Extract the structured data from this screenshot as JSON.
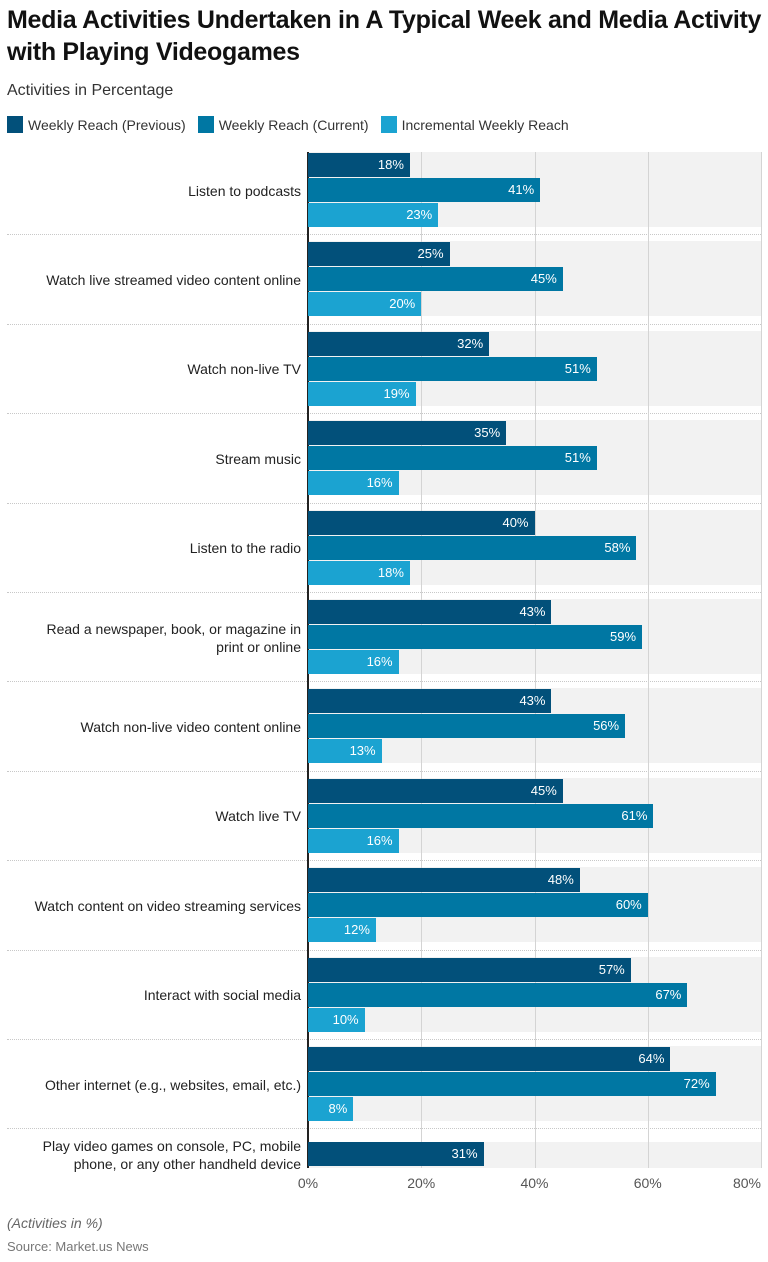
{
  "chart_data": {
    "type": "bar",
    "orientation": "horizontal",
    "title": "Media Activities Undertaken in A Typical Week and Media Activity with Playing Videogames",
    "subtitle": "Activities in Percentage",
    "xlim": [
      0,
      80
    ],
    "x_ticks": [
      "0%",
      "20%",
      "40%",
      "60%",
      "80%"
    ],
    "x_tick_values": [
      0,
      20,
      40,
      60,
      80
    ],
    "grid": true,
    "legend_position": "top-left",
    "categories": [
      [
        "Listen to podcasts"
      ],
      [
        "Watch live streamed video content online"
      ],
      [
        "Watch non-live TV"
      ],
      [
        "Stream music"
      ],
      [
        "Listen to the radio"
      ],
      [
        "Read a newspaper, book, or magazine in",
        "print or online"
      ],
      [
        "Watch non-live video content online"
      ],
      [
        "Watch live TV"
      ],
      [
        "Watch content on video streaming services"
      ],
      [
        "Interact with social media"
      ],
      [
        "Other internet (e.g., websites, email, etc.)"
      ],
      [
        "Play video games on console, PC, mobile",
        "phone, or any other handheld device"
      ]
    ],
    "series": [
      {
        "name": "Weekly Reach (Previous)",
        "color": "#02507a",
        "values": [
          18,
          25,
          32,
          35,
          40,
          43,
          43,
          45,
          48,
          57,
          64,
          31
        ]
      },
      {
        "name": "Weekly Reach (Current)",
        "color": "#0077a3",
        "values": [
          41,
          45,
          51,
          51,
          58,
          59,
          56,
          61,
          60,
          67,
          72,
          null
        ]
      },
      {
        "name": "Incremental Weekly Reach",
        "color": "#1ba3d1",
        "values": [
          23,
          20,
          19,
          16,
          18,
          16,
          13,
          16,
          12,
          10,
          8,
          null
        ]
      }
    ],
    "value_suffix": "%",
    "note": "(Activities in %)",
    "source": "Source: Market.us News"
  }
}
